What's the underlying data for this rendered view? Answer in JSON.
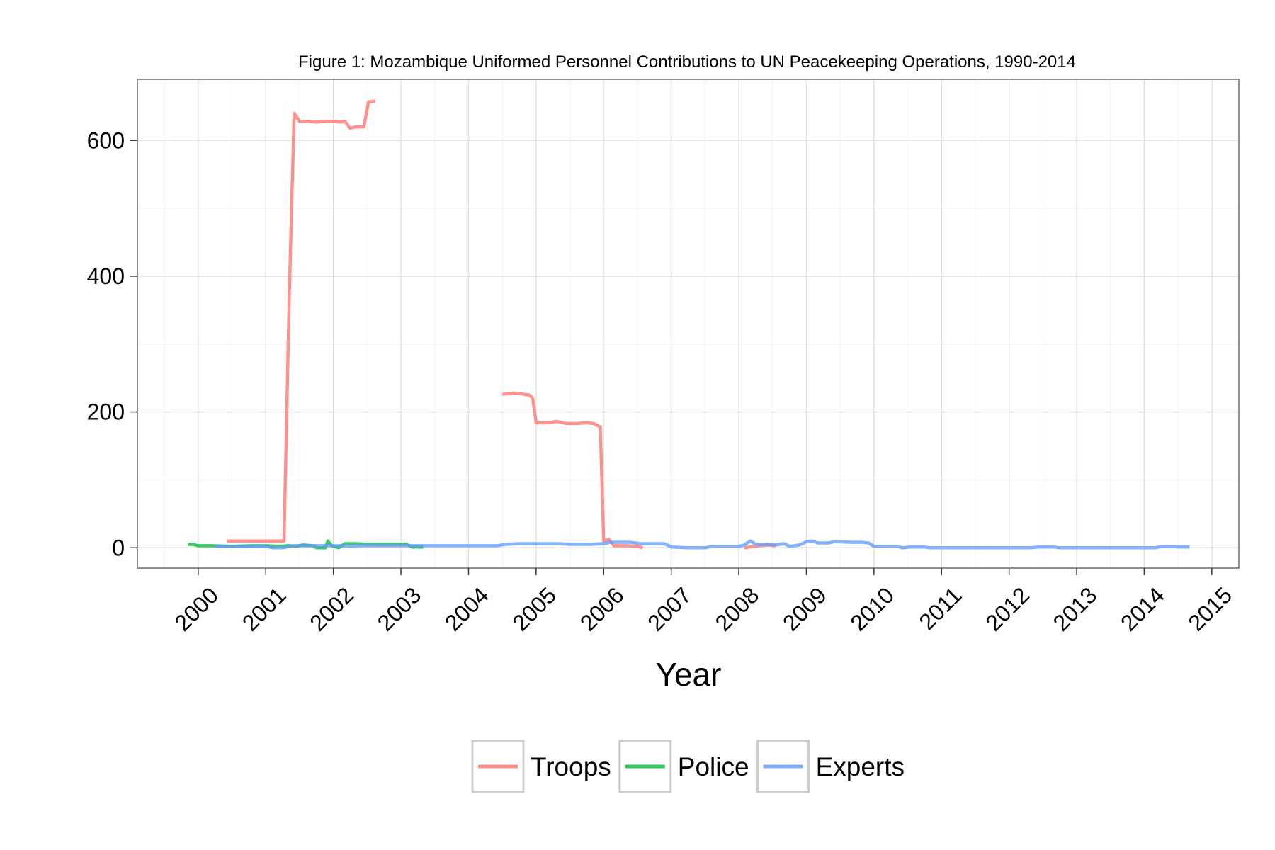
{
  "chart_data": {
    "type": "line",
    "title": "Figure 1: Mozambique Uniformed Personnel Contributions to UN Peacekeeping Operations, 1990-2014",
    "xlabel": "Year",
    "ylabel": "",
    "xlim": [
      1999.1,
      2015.4
    ],
    "ylim": [
      -30,
      690
    ],
    "x_ticks": [
      2000,
      2001,
      2002,
      2003,
      2004,
      2005,
      2006,
      2007,
      2008,
      2009,
      2010,
      2011,
      2012,
      2013,
      2014,
      2015
    ],
    "y_ticks": [
      0,
      200,
      400,
      600
    ],
    "grid": true,
    "legend_position": "bottom",
    "series": [
      {
        "name": "Troops",
        "color": "#F8766D",
        "segments": [
          [
            [
              2000.42,
              10
            ],
            [
              2000.6,
              10
            ],
            [
              2000.8,
              10
            ],
            [
              2001.0,
              10
            ],
            [
              2001.1,
              10
            ],
            [
              2001.27,
              10
            ],
            [
              2001.35,
              380
            ],
            [
              2001.42,
              640
            ],
            [
              2001.5,
              628
            ],
            [
              2001.6,
              628
            ],
            [
              2001.75,
              627
            ],
            [
              2001.9,
              628
            ],
            [
              2002.0,
              628
            ],
            [
              2002.1,
              627
            ],
            [
              2002.17,
              628
            ],
            [
              2002.25,
              618
            ],
            [
              2002.33,
              620
            ],
            [
              2002.45,
              620
            ],
            [
              2002.52,
              657
            ],
            [
              2002.62,
              658
            ]
          ],
          [
            [
              2004.5,
              226
            ],
            [
              2004.67,
              228
            ],
            [
              2004.75,
              227
            ],
            [
              2004.9,
              225
            ],
            [
              2004.95,
              220
            ],
            [
              2005.0,
              184
            ],
            [
              2005.2,
              184
            ],
            [
              2005.3,
              186
            ],
            [
              2005.45,
              183
            ],
            [
              2005.6,
              183
            ],
            [
              2005.75,
              184
            ],
            [
              2005.85,
              183
            ],
            [
              2005.95,
              178
            ],
            [
              2006.0,
              10
            ],
            [
              2006.08,
              12
            ],
            [
              2006.15,
              3
            ],
            [
              2006.35,
              3
            ],
            [
              2006.5,
              2
            ],
            [
              2006.58,
              0
            ]
          ],
          [
            [
              2008.08,
              0
            ],
            [
              2008.3,
              3
            ],
            [
              2008.45,
              4
            ],
            [
              2008.55,
              3
            ]
          ]
        ]
      },
      {
        "name": "Police",
        "color": "#00BA38",
        "segments": [
          [
            [
              1999.85,
              5
            ],
            [
              1999.92,
              5
            ],
            [
              2000.0,
              3
            ],
            [
              2000.2,
              3
            ],
            [
              2000.5,
              2
            ],
            [
              2000.8,
              3
            ],
            [
              2001.0,
              3
            ],
            [
              2001.2,
              2
            ],
            [
              2001.35,
              3
            ],
            [
              2001.45,
              2
            ],
            [
              2001.55,
              4
            ],
            [
              2001.7,
              3
            ],
            [
              2001.75,
              0
            ],
            [
              2001.88,
              0
            ],
            [
              2001.92,
              10
            ],
            [
              2001.98,
              3
            ],
            [
              2002.08,
              0
            ],
            [
              2002.17,
              6
            ],
            [
              2002.33,
              6
            ],
            [
              2002.5,
              5
            ],
            [
              2002.75,
              5
            ],
            [
              2003.0,
              5
            ],
            [
              2003.08,
              5
            ],
            [
              2003.17,
              1
            ],
            [
              2003.33,
              1
            ]
          ]
        ]
      },
      {
        "name": "Experts",
        "color": "#619CFF",
        "segments": [
          [
            [
              2000.25,
              2
            ],
            [
              2000.5,
              2
            ],
            [
              2001.0,
              2
            ],
            [
              2001.1,
              0
            ],
            [
              2001.25,
              0
            ],
            [
              2001.4,
              3
            ],
            [
              2001.5,
              3
            ],
            [
              2001.65,
              3
            ],
            [
              2001.8,
              3
            ],
            [
              2002.0,
              3
            ],
            [
              2002.1,
              3
            ],
            [
              2002.25,
              2
            ],
            [
              2002.4,
              3
            ],
            [
              2003.0,
              3
            ],
            [
              2003.5,
              3
            ],
            [
              2004.0,
              3
            ],
            [
              2004.42,
              3
            ],
            [
              2004.55,
              5
            ],
            [
              2004.75,
              6
            ],
            [
              2005.0,
              6
            ],
            [
              2005.33,
              6
            ],
            [
              2005.5,
              5
            ],
            [
              2005.8,
              5
            ],
            [
              2006.0,
              6
            ],
            [
              2006.1,
              8
            ],
            [
              2006.4,
              8
            ],
            [
              2006.55,
              6
            ],
            [
              2006.9,
              6
            ],
            [
              2007.0,
              1
            ],
            [
              2007.25,
              0
            ],
            [
              2007.5,
              0
            ],
            [
              2007.6,
              2
            ],
            [
              2007.8,
              2
            ],
            [
              2008.0,
              2
            ],
            [
              2008.08,
              4
            ],
            [
              2008.17,
              10
            ],
            [
              2008.25,
              5
            ],
            [
              2008.42,
              5
            ],
            [
              2008.55,
              4
            ],
            [
              2008.67,
              6
            ],
            [
              2008.75,
              2
            ],
            [
              2008.9,
              4
            ],
            [
              2009.0,
              9
            ],
            [
              2009.08,
              10
            ],
            [
              2009.17,
              7
            ],
            [
              2009.33,
              7
            ],
            [
              2009.42,
              9
            ],
            [
              2009.67,
              8
            ],
            [
              2009.83,
              8
            ],
            [
              2009.92,
              7
            ],
            [
              2010.0,
              2
            ],
            [
              2010.2,
              2
            ],
            [
              2010.35,
              2
            ],
            [
              2010.42,
              0
            ],
            [
              2010.55,
              1
            ],
            [
              2010.75,
              1
            ],
            [
              2010.83,
              0
            ],
            [
              2011.0,
              0
            ],
            [
              2011.5,
              0
            ],
            [
              2012.0,
              0
            ],
            [
              2012.33,
              0
            ],
            [
              2012.42,
              1
            ],
            [
              2012.67,
              1
            ],
            [
              2012.75,
              0
            ],
            [
              2013.0,
              0
            ],
            [
              2013.5,
              0
            ],
            [
              2014.0,
              0
            ],
            [
              2014.17,
              0
            ],
            [
              2014.25,
              2
            ],
            [
              2014.4,
              2
            ],
            [
              2014.5,
              1
            ],
            [
              2014.67,
              1
            ]
          ]
        ]
      }
    ]
  }
}
